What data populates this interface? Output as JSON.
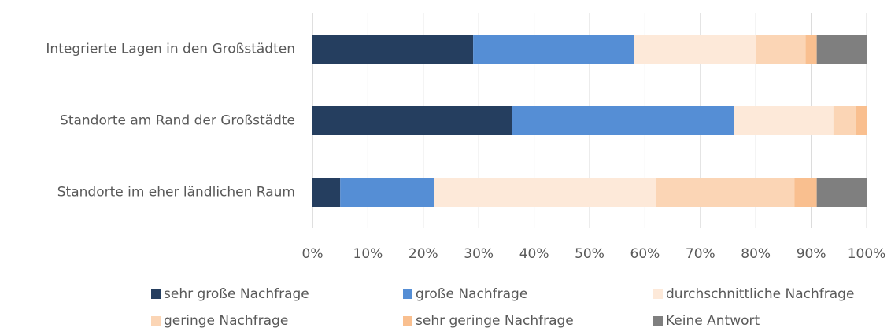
{
  "chart_data": {
    "type": "stacked-barh",
    "categories": [
      "Integrierte Lagen in den Großstädten",
      "Standorte am Rand der Großstädte",
      "Standorte im eher ländlichen Raum"
    ],
    "series": [
      {
        "name": "sehr große Nachfrage",
        "color": "#253e5f",
        "values": [
          29,
          36,
          5
        ]
      },
      {
        "name": "große Nachfrage",
        "color": "#558ed5",
        "values": [
          29,
          40,
          17
        ]
      },
      {
        "name": "durchschnittliche Nachfrage",
        "color": "#fde9d9",
        "values": [
          22,
          18,
          40
        ]
      },
      {
        "name": "geringe Nachfrage",
        "color": "#fbd5b5",
        "values": [
          9,
          4,
          25
        ]
      },
      {
        "name": "sehr geringe Nachfrage",
        "color": "#f9bf8f",
        "values": [
          2,
          2,
          4
        ]
      },
      {
        "name": "Keine Antwort",
        "color": "#7f7f7f",
        "values": [
          9,
          0,
          9
        ]
      }
    ],
    "xlim": [
      0,
      100
    ],
    "xticks": [
      {
        "value": 0,
        "label": "0%"
      },
      {
        "value": 10,
        "label": "10%"
      },
      {
        "value": 20,
        "label": "20%"
      },
      {
        "value": 30,
        "label": "30%"
      },
      {
        "value": 40,
        "label": "40%"
      },
      {
        "value": 50,
        "label": "50%"
      },
      {
        "value": 60,
        "label": "60%"
      },
      {
        "value": 70,
        "label": "70%"
      },
      {
        "value": 80,
        "label": "80%"
      },
      {
        "value": 90,
        "label": "90%"
      },
      {
        "value": 100,
        "label": "100%"
      }
    ],
    "grid": true
  }
}
